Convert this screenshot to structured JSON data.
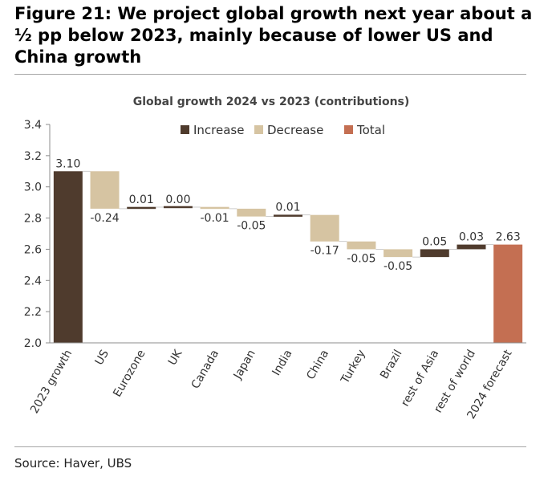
{
  "figure": {
    "title": "Figure 21: We project global growth next year about a ½ pp below 2023, mainly because of lower US and China growth",
    "source": "Source: Haver, UBS"
  },
  "chart_data": {
    "type": "bar",
    "subtype": "waterfall",
    "title": "Global growth 2024 vs 2023 (contributions)",
    "xlabel": "",
    "ylabel": "",
    "ylim": [
      2.0,
      3.4
    ],
    "yticks": [
      "2.0",
      "2.2",
      "2.4",
      "2.6",
      "2.8",
      "3.0",
      "3.2",
      "3.4"
    ],
    "ytick_values": [
      2.0,
      2.2,
      2.4,
      2.6,
      2.8,
      3.0,
      3.2,
      3.4
    ],
    "grid": false,
    "legend": {
      "placement": "top-center",
      "entries": [
        {
          "name": "Increase",
          "color": "#4f3b2d"
        },
        {
          "name": "Decrease",
          "color": "#d6c4a2"
        },
        {
          "name": "Total",
          "color": "#c46f52"
        }
      ]
    },
    "categories": [
      "2023 growth",
      "US",
      "Eurozone",
      "UK",
      "Canada",
      "Japan",
      "India",
      "China",
      "Turkey",
      "Brazil",
      "rest of Asia",
      "rest of world",
      "2024 forecast"
    ],
    "bars": [
      {
        "category": "2023 growth",
        "kind": "increase",
        "bottom": 2.0,
        "top": 3.1,
        "label": "3.10"
      },
      {
        "category": "US",
        "kind": "decrease",
        "bottom": 2.86,
        "top": 3.1,
        "label": "-0.24"
      },
      {
        "category": "Eurozone",
        "kind": "increase",
        "bottom": 2.86,
        "top": 2.87,
        "label": "0.01"
      },
      {
        "category": "UK",
        "kind": "increase",
        "bottom": 2.87,
        "top": 2.87,
        "label": "0.00"
      },
      {
        "category": "Canada",
        "kind": "decrease",
        "bottom": 2.86,
        "top": 2.87,
        "label": "-0.01"
      },
      {
        "category": "Japan",
        "kind": "decrease",
        "bottom": 2.81,
        "top": 2.86,
        "label": "-0.05"
      },
      {
        "category": "India",
        "kind": "increase",
        "bottom": 2.81,
        "top": 2.82,
        "label": "0.01"
      },
      {
        "category": "China",
        "kind": "decrease",
        "bottom": 2.65,
        "top": 2.82,
        "label": "-0.17"
      },
      {
        "category": "Turkey",
        "kind": "decrease",
        "bottom": 2.6,
        "top": 2.65,
        "label": "-0.05"
      },
      {
        "category": "Brazil",
        "kind": "decrease",
        "bottom": 2.55,
        "top": 2.6,
        "label": "-0.05"
      },
      {
        "category": "rest of Asia",
        "kind": "increase",
        "bottom": 2.55,
        "top": 2.6,
        "label": "0.05"
      },
      {
        "category": "rest of world",
        "kind": "increase",
        "bottom": 2.6,
        "top": 2.63,
        "label": "0.03"
      },
      {
        "category": "2024 forecast",
        "kind": "total",
        "bottom": 2.0,
        "top": 2.63,
        "label": "2.63"
      }
    ],
    "colors": {
      "increase": "#4f3b2d",
      "decrease": "#d6c4a2",
      "total": "#c46f52",
      "axis": "#8c8c8c",
      "text": "#333333"
    }
  }
}
